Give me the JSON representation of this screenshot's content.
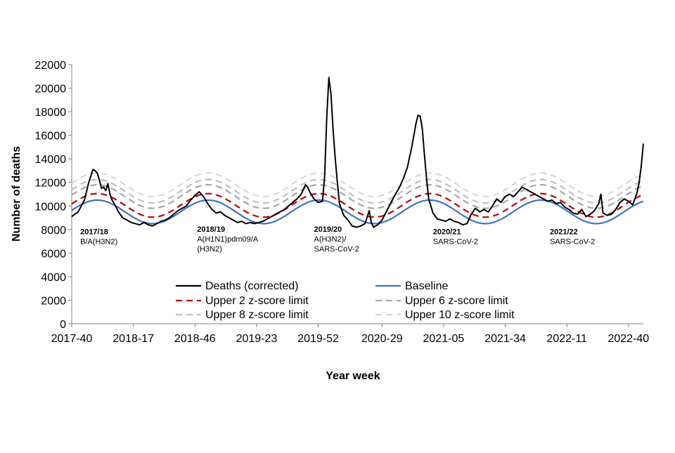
{
  "chart_data": {
    "type": "line",
    "xlabel": "Year week",
    "ylabel": "Number of deaths",
    "ylim": [
      0,
      22000
    ],
    "yticks": [
      0,
      2000,
      4000,
      6000,
      8000,
      10000,
      12000,
      14000,
      16000,
      18000,
      20000,
      22000
    ],
    "x_tick_labels": [
      "2017-40",
      "2018-17",
      "2018-46",
      "2019-23",
      "2019-52",
      "2020-29",
      "2021-05",
      "2021-34",
      "2022-11",
      "2022-40"
    ],
    "x_tick_week_index": [
      0,
      29,
      58,
      87,
      116,
      146,
      175,
      204,
      233,
      262
    ],
    "grid": false,
    "legend_position": "bottom-center",
    "annotations": [
      {
        "season": "2017/18",
        "strain_lines": [
          "B/A(H3N2)"
        ],
        "week_index": 4,
        "y": 7600
      },
      {
        "season": "2018/19",
        "strain_lines": [
          "A(H1N1)pdm09/A",
          "(H3N2)"
        ],
        "week_index": 59,
        "y": 7800
      },
      {
        "season": "2019/20",
        "strain_lines": [
          "A(H3N2)/",
          "SARS-CoV-2"
        ],
        "week_index": 114,
        "y": 7800
      },
      {
        "season": "2020/21",
        "strain_lines": [
          "SARS-CoV-2"
        ],
        "week_index": 170,
        "y": 7600
      },
      {
        "season": "2021/22",
        "strain_lines": [
          "SARS-CoV-2"
        ],
        "week_index": 225,
        "y": 7600
      }
    ],
    "baseline_model": {
      "mean": 9500,
      "amplitude": 1000,
      "peak_week_index": 12,
      "period_weeks": 52.18
    },
    "threshold_offsets": {
      "z2": 550,
      "z6": 1300,
      "z8": 1750,
      "z10": 2300
    },
    "series": [
      {
        "name": "Deaths (corrected)",
        "color": "#000000",
        "style": "solid",
        "key": "deaths",
        "anchors": [
          [
            0,
            9100
          ],
          [
            3,
            9500
          ],
          [
            6,
            10500
          ],
          [
            8,
            12000
          ],
          [
            10,
            13100
          ],
          [
            11,
            13000
          ],
          [
            12,
            12800
          ],
          [
            13,
            12200
          ],
          [
            14,
            11500
          ],
          [
            15,
            11600
          ],
          [
            16,
            11300
          ],
          [
            17,
            11900
          ],
          [
            18,
            11000
          ],
          [
            19,
            10500
          ],
          [
            20,
            10200
          ],
          [
            22,
            9500
          ],
          [
            24,
            9000
          ],
          [
            26,
            8800
          ],
          [
            28,
            8600
          ],
          [
            30,
            8500
          ],
          [
            32,
            8400
          ],
          [
            34,
            8600
          ],
          [
            36,
            8400
          ],
          [
            38,
            8300
          ],
          [
            40,
            8500
          ],
          [
            42,
            8700
          ],
          [
            44,
            8800
          ],
          [
            46,
            9000
          ],
          [
            48,
            9300
          ],
          [
            50,
            9600
          ],
          [
            52,
            9800
          ],
          [
            54,
            10000
          ],
          [
            56,
            10500
          ],
          [
            58,
            10900
          ],
          [
            60,
            11200
          ],
          [
            62,
            10800
          ],
          [
            64,
            10200
          ],
          [
            66,
            9700
          ],
          [
            68,
            9400
          ],
          [
            70,
            9500
          ],
          [
            72,
            9200
          ],
          [
            74,
            9000
          ],
          [
            76,
            8800
          ],
          [
            78,
            8600
          ],
          [
            80,
            8700
          ],
          [
            82,
            8500
          ],
          [
            84,
            8600
          ],
          [
            86,
            8500
          ],
          [
            88,
            8600
          ],
          [
            90,
            8700
          ],
          [
            92,
            8900
          ],
          [
            94,
            9100
          ],
          [
            96,
            9300
          ],
          [
            98,
            9500
          ],
          [
            100,
            9700
          ],
          [
            102,
            10000
          ],
          [
            104,
            10300
          ],
          [
            106,
            10600
          ],
          [
            108,
            11000
          ],
          [
            110,
            11800
          ],
          [
            111,
            11600
          ],
          [
            112,
            11200
          ],
          [
            114,
            10600
          ],
          [
            116,
            10300
          ],
          [
            118,
            10400
          ],
          [
            119,
            12500
          ],
          [
            120,
            17500
          ],
          [
            121,
            20900
          ],
          [
            122,
            19500
          ],
          [
            123,
            16500
          ],
          [
            124,
            14000
          ],
          [
            125,
            12000
          ],
          [
            126,
            10200
          ],
          [
            128,
            9200
          ],
          [
            130,
            8800
          ],
          [
            132,
            8300
          ],
          [
            134,
            8200
          ],
          [
            136,
            8300
          ],
          [
            138,
            8500
          ],
          [
            140,
            9600
          ],
          [
            141,
            8600
          ],
          [
            142,
            8200
          ],
          [
            144,
            8400
          ],
          [
            146,
            8800
          ],
          [
            148,
            9500
          ],
          [
            150,
            10200
          ],
          [
            152,
            10900
          ],
          [
            154,
            11500
          ],
          [
            156,
            12300
          ],
          [
            158,
            13300
          ],
          [
            160,
            15000
          ],
          [
            162,
            17000
          ],
          [
            163,
            17700
          ],
          [
            164,
            17600
          ],
          [
            165,
            16500
          ],
          [
            166,
            14300
          ],
          [
            167,
            12300
          ],
          [
            168,
            10600
          ],
          [
            170,
            9400
          ],
          [
            172,
            8900
          ],
          [
            174,
            8800
          ],
          [
            176,
            8700
          ],
          [
            178,
            8900
          ],
          [
            180,
            8700
          ],
          [
            182,
            8600
          ],
          [
            184,
            8400
          ],
          [
            186,
            8500
          ],
          [
            188,
            9300
          ],
          [
            190,
            9800
          ],
          [
            192,
            9500
          ],
          [
            194,
            9700
          ],
          [
            196,
            9500
          ],
          [
            198,
            10000
          ],
          [
            200,
            10600
          ],
          [
            202,
            10300
          ],
          [
            204,
            10800
          ],
          [
            206,
            11000
          ],
          [
            208,
            10800
          ],
          [
            210,
            11200
          ],
          [
            212,
            11600
          ],
          [
            214,
            11400
          ],
          [
            216,
            11200
          ],
          [
            218,
            11000
          ],
          [
            220,
            10800
          ],
          [
            222,
            10600
          ],
          [
            224,
            10400
          ],
          [
            226,
            10500
          ],
          [
            228,
            10200
          ],
          [
            230,
            10300
          ],
          [
            232,
            9900
          ],
          [
            234,
            9700
          ],
          [
            236,
            9400
          ],
          [
            238,
            9300
          ],
          [
            240,
            9700
          ],
          [
            242,
            9100
          ],
          [
            244,
            9300
          ],
          [
            246,
            9600
          ],
          [
            248,
            10200
          ],
          [
            249,
            11000
          ],
          [
            250,
            9400
          ],
          [
            252,
            9200
          ],
          [
            254,
            9300
          ],
          [
            256,
            9700
          ],
          [
            258,
            10300
          ],
          [
            260,
            10600
          ],
          [
            262,
            10400
          ],
          [
            264,
            10100
          ],
          [
            266,
            11100
          ],
          [
            267,
            12000
          ],
          [
            268,
            13400
          ],
          [
            269,
            15300
          ]
        ]
      },
      {
        "name": "Baseline",
        "color": "#4472C4",
        "style": "solid",
        "key": "baseline"
      },
      {
        "name": "Upper 2 z-score limit",
        "color": "#C00000",
        "style": "dashed",
        "key": "z2"
      },
      {
        "name": "Upper 6 z-score limit",
        "color": "#A6A6A6",
        "style": "dashed",
        "key": "z6"
      },
      {
        "name": "Upper 8 z-score limit",
        "color": "#BFBFBF",
        "style": "dashed",
        "key": "z8"
      },
      {
        "name": "Upper 10 z-score limit",
        "color": "#D9D9D9",
        "style": "dashed",
        "key": "z10"
      }
    ],
    "total_weeks": 270
  }
}
